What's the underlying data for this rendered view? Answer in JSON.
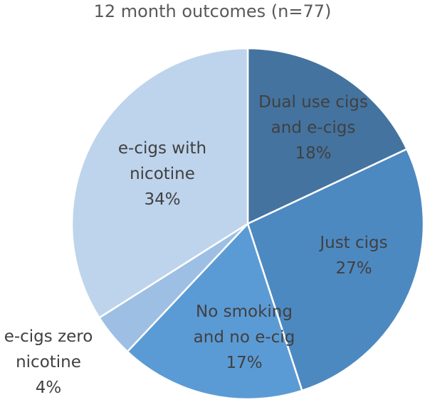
{
  "chart_data": {
    "type": "pie",
    "title": "12 month outcomes (n=77)",
    "categories": [
      "Dual use cigs and e-cigs",
      "Just cigs",
      "No smoking and no e-cig",
      "e-cigs zero nicotine",
      "e-cigs with nicotine"
    ],
    "values": [
      18,
      27,
      17,
      4,
      34
    ],
    "value_labels": [
      "18%",
      "27%",
      "17%",
      "4%",
      "34%"
    ],
    "colors": [
      "#44739f",
      "#4d89c1",
      "#5b9bd5",
      "#9dbfe4",
      "#bed4ec"
    ]
  }
}
